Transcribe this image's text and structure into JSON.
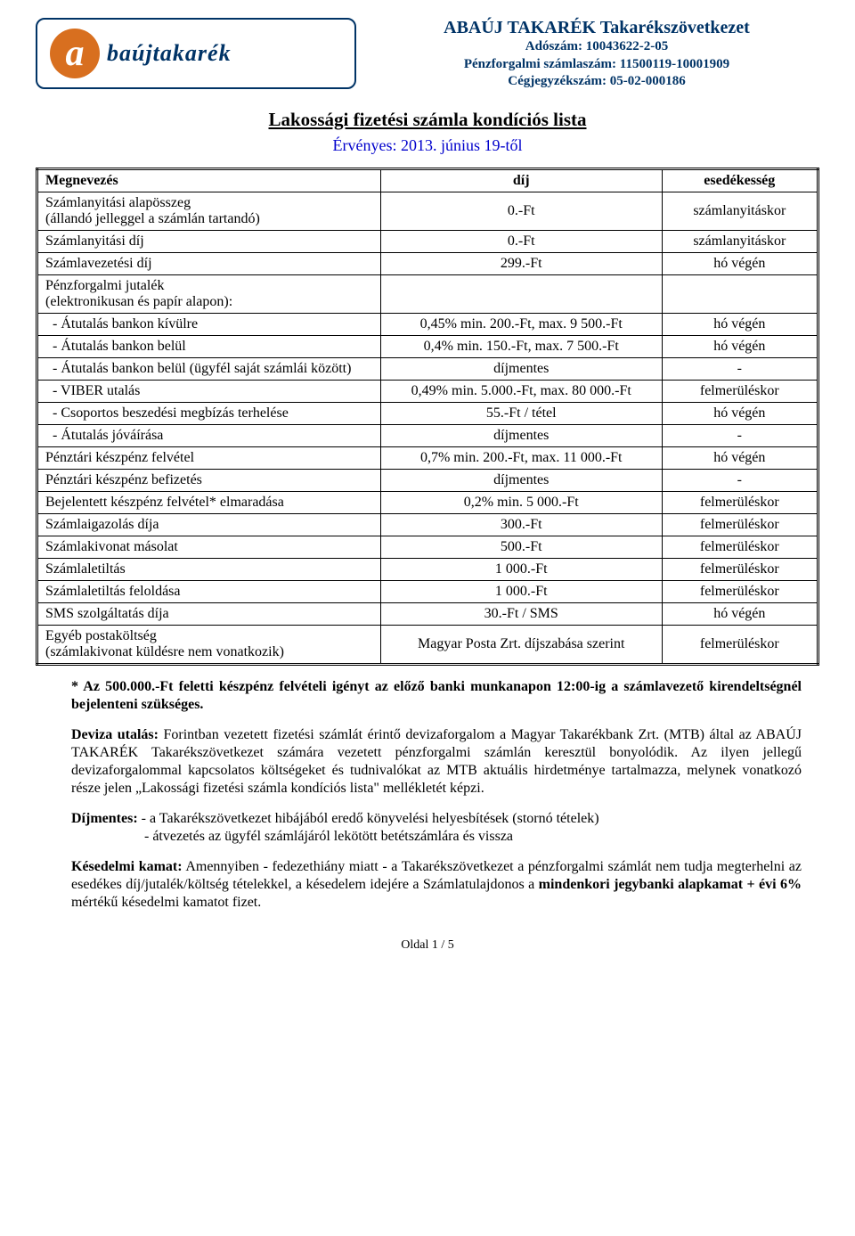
{
  "logo": {
    "letter": "a",
    "text": "baújtakarék"
  },
  "company": {
    "name": "ABAÚJ TAKARÉK Takarékszövetkezet",
    "tax": "Adószám: 10043622-2-05",
    "account": "Pénzforgalmi számlaszám: 11500119-10001909",
    "reg": "Cégjegyzékszám: 05-02-000186"
  },
  "title": "Lakossági fizetési számla kondíciós lista",
  "valid_from": "Érvényes: 2013. június 19-től",
  "table": {
    "headers": {
      "name": "Megnevezés",
      "fee": "díj",
      "due": "esedékesség"
    },
    "rows": [
      {
        "name": "Számlanyitási alapösszeg\n(állandó jelleggel a számlán tartandó)",
        "fee": "0.-Ft",
        "due": "számlanyitáskor"
      },
      {
        "name": "Számlanyitási díj",
        "fee": "0.-Ft",
        "due": "számlanyitáskor"
      },
      {
        "name": "Számlavezetési díj",
        "fee": "299.-Ft",
        "due": "hó végén"
      },
      {
        "name": "Pénzforgalmi jutalék\n(elektronikusan és papír alapon):",
        "fee": "",
        "due": ""
      },
      {
        "name": "  - Átutalás bankon kívülre",
        "fee": "0,45% min. 200.-Ft, max. 9 500.-Ft",
        "due": "hó végén"
      },
      {
        "name": "  - Átutalás bankon belül",
        "fee": "0,4% min. 150.-Ft, max. 7 500.-Ft",
        "due": "hó végén"
      },
      {
        "name": "  - Átutalás bankon belül (ügyfél saját számlái között)",
        "fee": "díjmentes",
        "due": "-"
      },
      {
        "name": "  - VIBER utalás",
        "fee": "0,49% min. 5.000.-Ft, max. 80 000.-Ft",
        "due": "felmerüléskor"
      },
      {
        "name": "  - Csoportos beszedési megbízás terhelése",
        "fee": "55.-Ft / tétel",
        "due": "hó végén"
      },
      {
        "name": "  - Átutalás jóváírása",
        "fee": "díjmentes",
        "due": "-"
      },
      {
        "name": "Pénztári készpénz felvétel",
        "fee": "0,7% min. 200.-Ft, max. 11 000.-Ft",
        "due": "hó végén"
      },
      {
        "name": "Pénztári készpénz befizetés",
        "fee": "díjmentes",
        "due": "-"
      },
      {
        "name": "Bejelentett készpénz felvétel* elmaradása",
        "fee": "0,2% min. 5 000.-Ft",
        "due": "felmerüléskor"
      },
      {
        "name": "Számlaigazolás díja",
        "fee": "300.-Ft",
        "due": "felmerüléskor"
      },
      {
        "name": "Számlakivonat másolat",
        "fee": "500.-Ft",
        "due": "felmerüléskor"
      },
      {
        "name": "Számlaletiltás",
        "fee": "1 000.-Ft",
        "due": "felmerüléskor"
      },
      {
        "name": "Számlaletiltás feloldása",
        "fee": "1 000.-Ft",
        "due": "felmerüléskor"
      },
      {
        "name": "SMS szolgáltatás díja",
        "fee": "30.-Ft / SMS",
        "due": "hó végén"
      },
      {
        "name": "Egyéb postaköltség\n(számlakivonat küldésre nem vonatkozik)",
        "fee": "Magyar Posta Zrt. díjszabása szerint",
        "due": "felmerüléskor"
      }
    ]
  },
  "notes": {
    "n1_bold": "* Az 500.000.-Ft feletti készpénz felvételi igényt az előző banki munkanapon 12:00-ig a számlavezető kirendeltségnél bejelenteni szükséges.",
    "n2_lead": "Deviza utalás:",
    "n2_text": " Forintban vezetett fizetési számlát érintő devizaforgalom a Magyar Takarékbank Zrt. (MTB) által az ABAÚJ TAKARÉK Takarékszövetkezet számára vezetett pénzforgalmi számlán keresztül bonyolódik. Az ilyen jellegű devizaforgalommal kapcsolatos költségeket és tudnivalókat az MTB aktuális hirdetménye tartalmazza, melynek vonatkozó része jelen „Lakossági fizetési számla kondíciós lista\" mellékletét képzi.",
    "n3_lead": "Díjmentes:",
    "n3_l1": " - a Takarékszövetkezet hibájából eredő könyvelési helyesbítések (stornó tételek)",
    "n3_l2": "- átvezetés az ügyfél számlájáról lekötött betétszámlára és vissza",
    "n4_lead": "Késedelmi kamat:",
    "n4_text": " Amennyiben - fedezethiány miatt - a Takarékszövetkezet a pénzforgalmi számlát nem tudja megterhelni az esedékes díj/jutalék/költség tételekkel, a késedelem idejére a Számlatulajdonos a ",
    "n4_bold": "mindenkori jegybanki alapkamat + évi 6%",
    "n4_tail": " mértékű késedelmi kamatot fizet."
  },
  "page": "Oldal 1 / 5"
}
